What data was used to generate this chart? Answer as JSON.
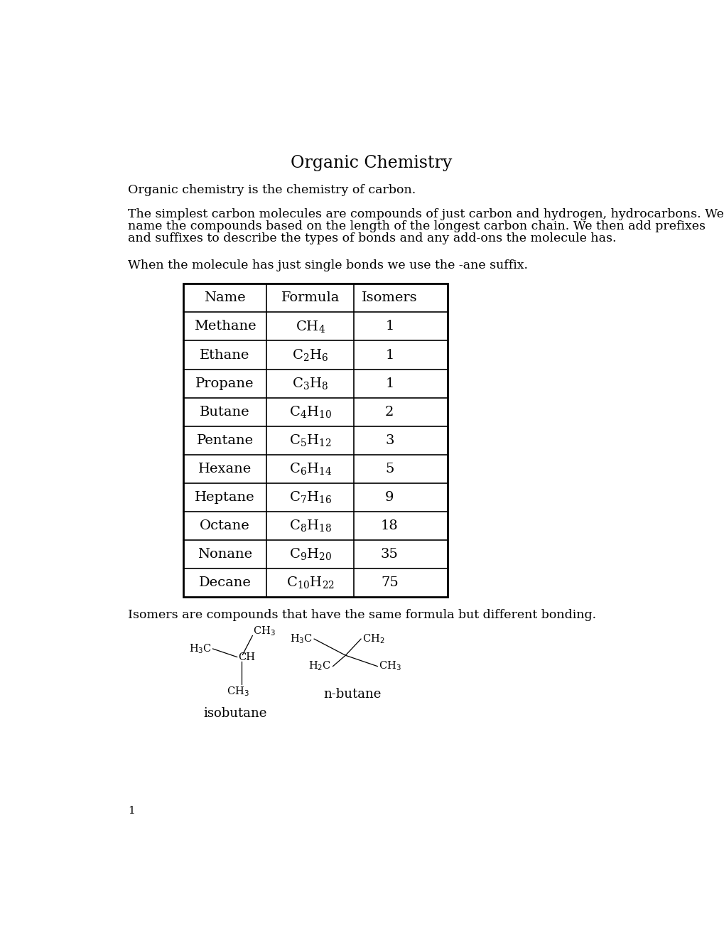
{
  "title": "Organic Chemistry",
  "para1": "Organic chemistry is the chemistry of carbon.",
  "para2_line1": "The simplest carbon molecules are compounds of just carbon and hydrogen, hydrocarbons. We",
  "para2_line2": "name the compounds based on the length of the longest carbon chain. We then add prefixes",
  "para2_line3": "and suffixes to describe the types of bonds and any add-ons the molecule has.",
  "para3": "When the molecule has just single bonds we use the -ane suffix.",
  "table_headers": [
    "Name",
    "Formula",
    "Isomers"
  ],
  "table_rows": [
    [
      "Methane",
      "CH_4",
      "1"
    ],
    [
      "Ethane",
      "C_2H_6",
      "1"
    ],
    [
      "Propane",
      "C_3H_8",
      "1"
    ],
    [
      "Butane",
      "C_4H_{10}",
      "2"
    ],
    [
      "Pentane",
      "C_5H_{12}",
      "3"
    ],
    [
      "Hexane",
      "C_6H_{14}",
      "5"
    ],
    [
      "Heptane",
      "C_7H_{16}",
      "9"
    ],
    [
      "Octane",
      "C_8H_{18}",
      "18"
    ],
    [
      "Nonane",
      "C_9H_{20}",
      "35"
    ],
    [
      "Decane",
      "C_{10}H_{22}",
      "75"
    ]
  ],
  "isomers_text": "Isomers are compounds that have the same formula but different bonding.",
  "label_isobutane": "isobutane",
  "label_nbutane": "n-butane",
  "page_number": "1",
  "bg_color": "#ffffff",
  "text_color": "#000000"
}
